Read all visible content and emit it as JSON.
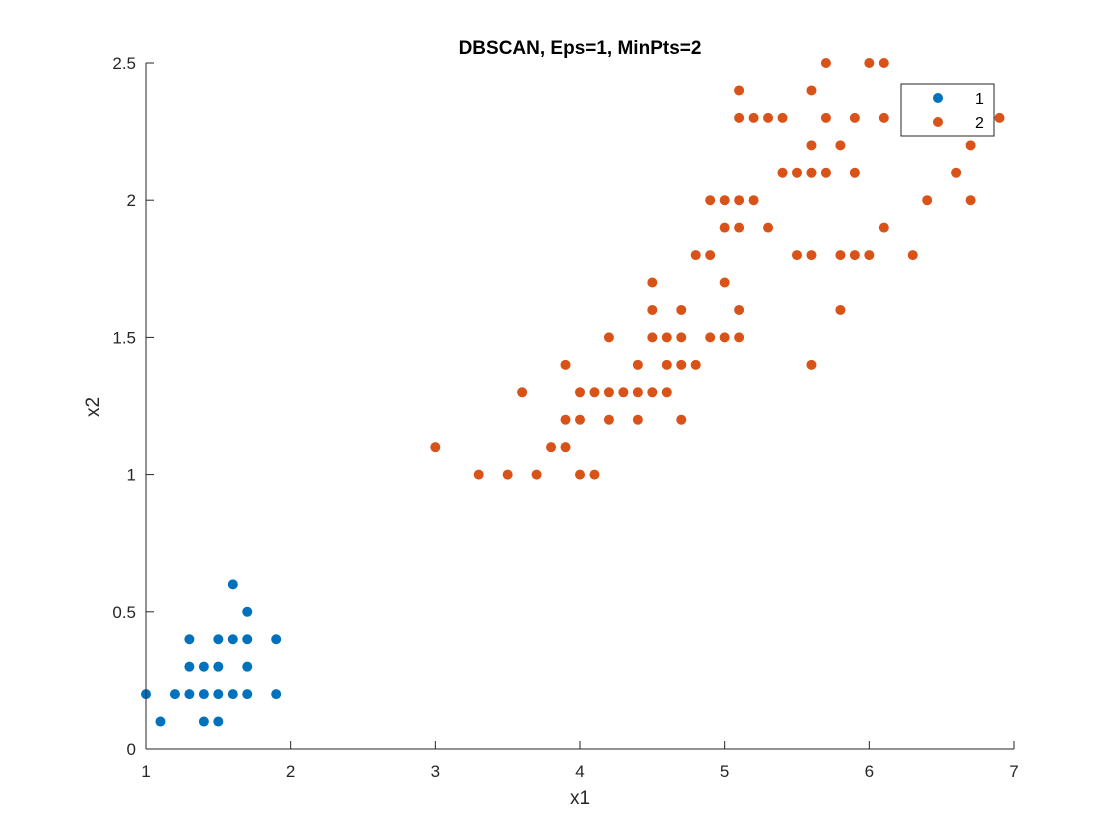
{
  "chart_data": {
    "type": "scatter",
    "title": "DBSCAN, Eps=1, MinPts=2",
    "xlabel": "x1",
    "ylabel": "x2",
    "xlim": [
      1,
      7
    ],
    "ylim": [
      0,
      2.5
    ],
    "xticks": [
      "1",
      "2",
      "3",
      "4",
      "5",
      "6",
      "7"
    ],
    "yticks": [
      "0",
      "0.5",
      "1",
      "1.5",
      "2",
      "2.5"
    ],
    "grid": false,
    "legend_position": "top-right",
    "series": [
      {
        "name": "1",
        "color": "#0072BD",
        "points": [
          [
            1.0,
            0.2
          ],
          [
            1.1,
            0.1
          ],
          [
            1.2,
            0.2
          ],
          [
            1.3,
            0.2
          ],
          [
            1.3,
            0.3
          ],
          [
            1.3,
            0.4
          ],
          [
            1.4,
            0.1
          ],
          [
            1.4,
            0.2
          ],
          [
            1.4,
            0.3
          ],
          [
            1.5,
            0.1
          ],
          [
            1.5,
            0.2
          ],
          [
            1.5,
            0.3
          ],
          [
            1.5,
            0.4
          ],
          [
            1.6,
            0.2
          ],
          [
            1.6,
            0.4
          ],
          [
            1.6,
            0.6
          ],
          [
            1.7,
            0.2
          ],
          [
            1.7,
            0.3
          ],
          [
            1.7,
            0.4
          ],
          [
            1.7,
            0.5
          ],
          [
            1.9,
            0.2
          ],
          [
            1.9,
            0.4
          ]
        ]
      },
      {
        "name": "2",
        "color": "#D95319",
        "points": [
          [
            3.0,
            1.1
          ],
          [
            3.3,
            1.0
          ],
          [
            3.5,
            1.0
          ],
          [
            3.6,
            1.3
          ],
          [
            3.7,
            1.0
          ],
          [
            3.8,
            1.1
          ],
          [
            3.9,
            1.1
          ],
          [
            3.9,
            1.2
          ],
          [
            3.9,
            1.4
          ],
          [
            4.0,
            1.0
          ],
          [
            4.0,
            1.2
          ],
          [
            4.0,
            1.3
          ],
          [
            4.1,
            1.0
          ],
          [
            4.1,
            1.3
          ],
          [
            4.2,
            1.2
          ],
          [
            4.2,
            1.3
          ],
          [
            4.2,
            1.5
          ],
          [
            4.3,
            1.3
          ],
          [
            4.4,
            1.2
          ],
          [
            4.4,
            1.3
          ],
          [
            4.4,
            1.4
          ],
          [
            4.5,
            1.3
          ],
          [
            4.5,
            1.5
          ],
          [
            4.5,
            1.6
          ],
          [
            4.5,
            1.7
          ],
          [
            4.6,
            1.3
          ],
          [
            4.6,
            1.4
          ],
          [
            4.6,
            1.5
          ],
          [
            4.7,
            1.2
          ],
          [
            4.7,
            1.4
          ],
          [
            4.7,
            1.5
          ],
          [
            4.7,
            1.6
          ],
          [
            4.8,
            1.4
          ],
          [
            4.8,
            1.8
          ],
          [
            4.9,
            1.5
          ],
          [
            4.9,
            1.8
          ],
          [
            4.9,
            2.0
          ],
          [
            5.0,
            1.5
          ],
          [
            5.0,
            1.7
          ],
          [
            5.0,
            1.9
          ],
          [
            5.0,
            2.0
          ],
          [
            5.1,
            1.5
          ],
          [
            5.1,
            1.6
          ],
          [
            5.1,
            1.9
          ],
          [
            5.1,
            2.0
          ],
          [
            5.1,
            2.3
          ],
          [
            5.1,
            2.4
          ],
          [
            5.2,
            2.0
          ],
          [
            5.2,
            2.3
          ],
          [
            5.3,
            1.9
          ],
          [
            5.3,
            2.3
          ],
          [
            5.4,
            2.1
          ],
          [
            5.4,
            2.3
          ],
          [
            5.5,
            1.8
          ],
          [
            5.5,
            2.1
          ],
          [
            5.6,
            1.4
          ],
          [
            5.6,
            1.8
          ],
          [
            5.6,
            2.1
          ],
          [
            5.6,
            2.2
          ],
          [
            5.6,
            2.4
          ],
          [
            5.7,
            2.1
          ],
          [
            5.7,
            2.3
          ],
          [
            5.7,
            2.5
          ],
          [
            5.8,
            1.6
          ],
          [
            5.8,
            1.8
          ],
          [
            5.8,
            2.2
          ],
          [
            5.9,
            1.8
          ],
          [
            5.9,
            2.1
          ],
          [
            5.9,
            2.3
          ],
          [
            6.0,
            1.8
          ],
          [
            6.0,
            2.5
          ],
          [
            6.1,
            1.9
          ],
          [
            6.1,
            2.3
          ],
          [
            6.1,
            2.5
          ],
          [
            6.3,
            1.8
          ],
          [
            6.4,
            2.0
          ],
          [
            6.6,
            2.1
          ],
          [
            6.7,
            2.0
          ],
          [
            6.7,
            2.2
          ],
          [
            6.9,
            2.3
          ]
        ]
      }
    ]
  }
}
